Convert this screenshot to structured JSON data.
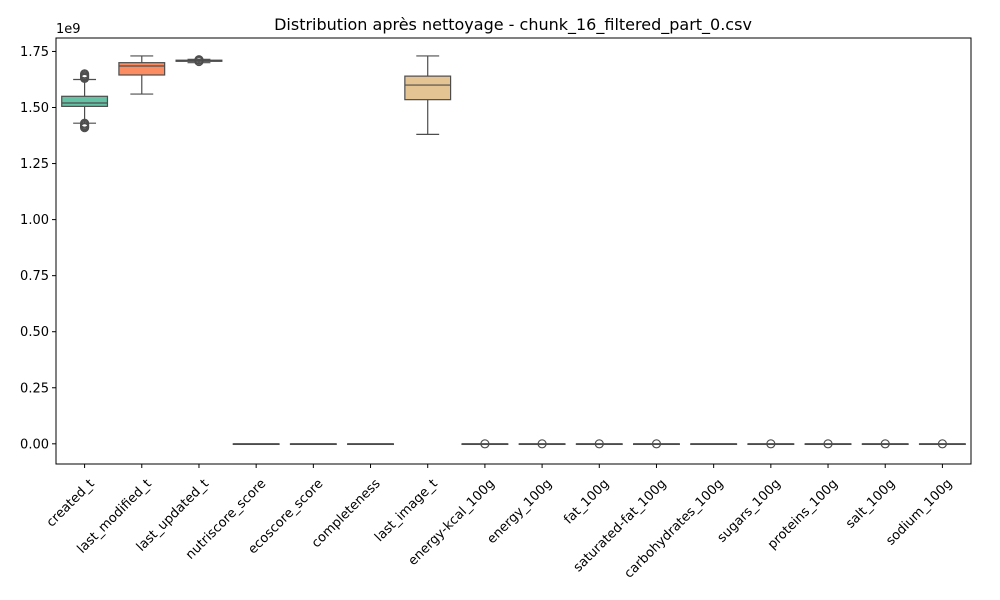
{
  "chart_data": {
    "type": "boxplot",
    "title": "Distribution après nettoyage - chunk_16_filtered_part_0.csv",
    "xlabel": "",
    "ylabel": "",
    "y_multiplier_label": "1e9",
    "ylim": [
      -0.09,
      1.81
    ],
    "yticks": [
      0.0,
      0.25,
      0.5,
      0.75,
      1.0,
      1.25,
      1.5,
      1.75
    ],
    "ytick_labels": [
      "0.00",
      "0.25",
      "0.50",
      "0.75",
      "1.00",
      "1.25",
      "1.50",
      "1.75"
    ],
    "units": "1e9",
    "grid": false,
    "legend": "none",
    "categories": [
      "created_t",
      "last_modified_t",
      "last_updated_t",
      "nutriscore_score",
      "ecoscore_score",
      "completeness",
      "last_image_t",
      "energy-kcal_100g",
      "energy_100g",
      "fat_100g",
      "saturated-fat_100g",
      "carbohydrates_100g",
      "sugars_100g",
      "proteins_100g",
      "salt_100g",
      "sodium_100g"
    ],
    "boxes": [
      {
        "category": "created_t",
        "whisker_low": 1.43,
        "q1": 1.505,
        "median": 1.52,
        "q3": 1.55,
        "whisker_high": 1.625,
        "outliers": [
          1.41,
          1.415,
          1.42,
          1.425,
          1.43,
          1.63,
          1.635,
          1.64,
          1.645,
          1.65
        ],
        "color": "#66c2a5"
      },
      {
        "category": "last_modified_t",
        "whisker_low": 1.56,
        "q1": 1.645,
        "median": 1.685,
        "q3": 1.7,
        "whisker_high": 1.73,
        "outliers": [],
        "color": "#fc8d62"
      },
      {
        "category": "last_updated_t",
        "whisker_low": 1.7,
        "q1": 1.706,
        "median": 1.709,
        "q3": 1.711,
        "whisker_high": 1.715,
        "outliers": [
          1.705,
          1.71,
          1.713
        ],
        "color": "#8da0cb"
      },
      {
        "category": "nutriscore_score",
        "whisker_low": 0,
        "q1": 0,
        "median": 0,
        "q3": 0,
        "whisker_high": 0,
        "outliers": [],
        "color": "#e78ac3"
      },
      {
        "category": "ecoscore_score",
        "whisker_low": 0,
        "q1": 0,
        "median": 0,
        "q3": 0,
        "whisker_high": 0,
        "outliers": [],
        "color": "#a6d854"
      },
      {
        "category": "completeness",
        "whisker_low": 0,
        "q1": 0,
        "median": 0,
        "q3": 0,
        "whisker_high": 0,
        "outliers": [],
        "color": "#ffd92f"
      },
      {
        "category": "last_image_t",
        "whisker_low": 1.38,
        "q1": 1.535,
        "median": 1.6,
        "q3": 1.64,
        "whisker_high": 1.73,
        "outliers": [],
        "color": "#e5c494"
      },
      {
        "category": "energy-kcal_100g",
        "whisker_low": 0,
        "q1": 0,
        "median": 0,
        "q3": 0,
        "whisker_high": 0,
        "outliers": [
          0
        ],
        "color": "#b3b3b3"
      },
      {
        "category": "energy_100g",
        "whisker_low": 0,
        "q1": 0,
        "median": 0,
        "q3": 0,
        "whisker_high": 0,
        "outliers": [
          0
        ],
        "color": "#66c2a5"
      },
      {
        "category": "fat_100g",
        "whisker_low": 0,
        "q1": 0,
        "median": 0,
        "q3": 0,
        "whisker_high": 0,
        "outliers": [
          0
        ],
        "color": "#fc8d62"
      },
      {
        "category": "saturated-fat_100g",
        "whisker_low": 0,
        "q1": 0,
        "median": 0,
        "q3": 0,
        "whisker_high": 0,
        "outliers": [
          0
        ],
        "color": "#8da0cb"
      },
      {
        "category": "carbohydrates_100g",
        "whisker_low": 0,
        "q1": 0,
        "median": 0,
        "q3": 0,
        "whisker_high": 0,
        "outliers": [],
        "color": "#e78ac3"
      },
      {
        "category": "sugars_100g",
        "whisker_low": 0,
        "q1": 0,
        "median": 0,
        "q3": 0,
        "whisker_high": 0,
        "outliers": [
          0
        ],
        "color": "#a6d854"
      },
      {
        "category": "proteins_100g",
        "whisker_low": 0,
        "q1": 0,
        "median": 0,
        "q3": 0,
        "whisker_high": 0,
        "outliers": [
          0
        ],
        "color": "#ffd92f"
      },
      {
        "category": "salt_100g",
        "whisker_low": 0,
        "q1": 0,
        "median": 0,
        "q3": 0,
        "whisker_high": 0,
        "outliers": [
          0
        ],
        "color": "#e5c494"
      },
      {
        "category": "sodium_100g",
        "whisker_low": 0,
        "q1": 0,
        "median": 0,
        "q3": 0,
        "whisker_high": 0,
        "outliers": [
          0
        ],
        "color": "#b3b3b3"
      }
    ]
  }
}
